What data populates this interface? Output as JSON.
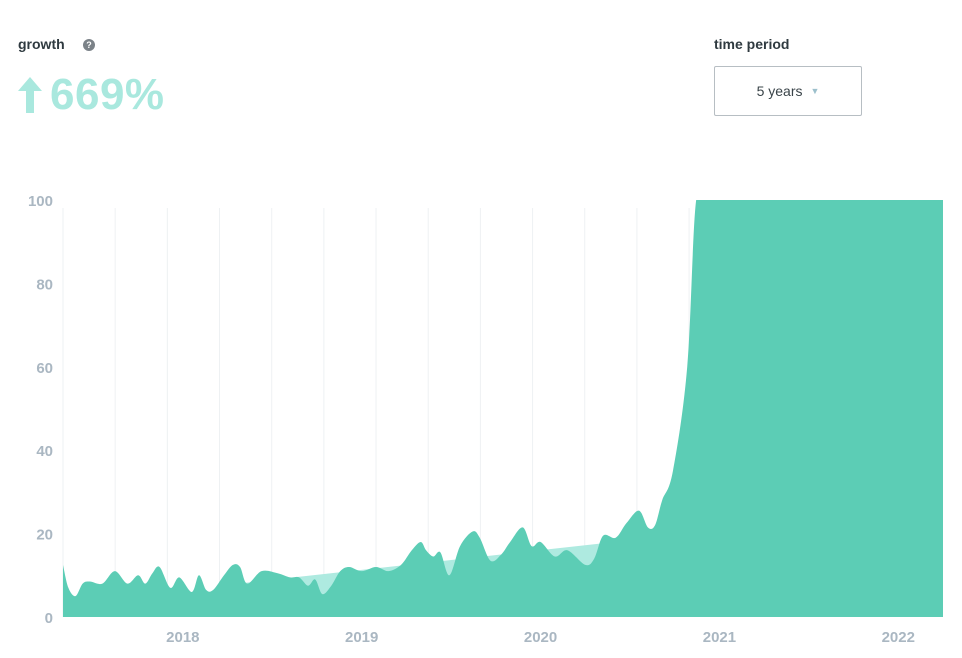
{
  "header": {
    "growth_label": "growth",
    "help_glyph": "?",
    "growth_value": "669%",
    "growth_color": "#a9e8de",
    "period_label": "time period",
    "period_value": "5 years"
  },
  "chart_data": {
    "type": "area",
    "title": "",
    "xlabel": "",
    "ylabel": "",
    "ylim": [
      0,
      100
    ],
    "yticks": [
      0,
      20,
      40,
      60,
      80,
      100
    ],
    "xticks": [
      "2018",
      "2019",
      "2020",
      "2021",
      "2022"
    ],
    "xtick_positions": [
      2018.0,
      2019.0,
      2020.0,
      2021.0,
      2022.0
    ],
    "xlim": [
      2017.33,
      2022.25
    ],
    "grid": "vertical",
    "area_color": "#5ccdb5",
    "trend_color": "#aeeae0",
    "series": [
      {
        "x": [
          2017.33,
          2017.36,
          2017.4,
          2017.44,
          2017.48,
          2017.55,
          2017.62,
          2017.69,
          2017.75,
          2017.79,
          2017.83,
          2017.87,
          2017.93,
          2017.98,
          2018.05,
          2018.09,
          2018.13,
          2018.17,
          2018.23,
          2018.28,
          2018.32,
          2018.36,
          2018.44,
          2018.53,
          2018.6,
          2018.65,
          2018.7,
          2018.74,
          2018.78,
          2018.83,
          2018.88,
          2018.93,
          2019.0,
          2019.08,
          2019.15,
          2019.22,
          2019.28,
          2019.33,
          2019.36,
          2019.4,
          2019.44,
          2019.49,
          2019.55,
          2019.62,
          2019.66,
          2019.72,
          2019.78,
          2019.83,
          2019.9,
          2019.95,
          2020.0,
          2020.08,
          2020.15,
          2020.25,
          2020.3,
          2020.35,
          2020.42,
          2020.48,
          2020.55,
          2020.6,
          2020.64,
          2020.68,
          2020.74,
          2020.82,
          2020.87,
          2020.94,
          2021.0,
          2021.05,
          2021.09,
          2021.15,
          2021.2,
          2021.25,
          2021.33,
          2021.4,
          2021.47,
          2021.54,
          2021.6,
          2021.65,
          2021.72,
          2021.78,
          2021.82,
          2021.86,
          2021.93,
          2021.97,
          2022.0,
          2022.05,
          2022.1,
          2022.15,
          2022.2,
          2022.25
        ],
        "y": [
          12.5,
          7,
          5,
          8,
          8.5,
          8,
          11,
          8,
          10,
          8,
          10.5,
          12,
          7,
          9.5,
          6,
          10,
          6.5,
          6.5,
          10,
          12.5,
          12,
          8,
          11,
          10.5,
          9.5,
          9.5,
          7.5,
          9,
          5.5,
          7.5,
          11,
          12,
          11,
          12,
          11,
          12.5,
          16,
          18,
          16,
          14.5,
          15.5,
          10,
          17,
          20.5,
          19,
          13.5,
          15,
          18,
          21.5,
          17,
          18,
          14.5,
          16,
          12.5,
          14,
          19.5,
          19,
          22.5,
          25.5,
          21.5,
          22,
          28,
          35,
          60,
          100,
          100,
          100,
          100,
          100,
          100,
          100,
          100,
          100,
          100,
          100,
          100,
          100,
          100,
          100,
          100,
          100,
          100,
          100,
          100,
          100,
          100,
          100,
          100,
          100,
          100
        ]
      },
      {
        "name": "",
        "x": [
          2018.2,
          2022.1
        ],
        "y": [
          7.5,
          26
        ]
      }
    ]
  }
}
